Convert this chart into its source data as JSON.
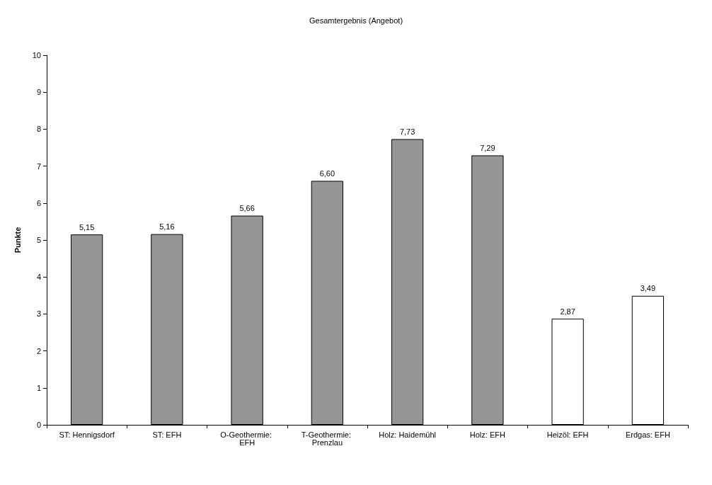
{
  "chart_data": {
    "type": "bar",
    "title": "Gesamtergebnis (Angebot)",
    "ylabel": "Punkte",
    "categories": [
      "ST: Hennigsdorf",
      "ST: EFH",
      "O-Geothermie: EFH",
      "T-Geothermie: Prenzlau",
      "Holz: Haidemühl",
      "Holz: EFH",
      "Heizöl: EFH",
      "Erdgas: EFH"
    ],
    "values": [
      5.15,
      5.16,
      5.66,
      6.6,
      7.73,
      7.29,
      2.87,
      3.49
    ],
    "colors": [
      "#969696",
      "#969696",
      "#969696",
      "#969696",
      "#969696",
      "#969696",
      "#ffffff",
      "#ffffff"
    ],
    "value_labels": [
      "5,15",
      "5,16",
      "5,66",
      "6,60",
      "7,73",
      "7,29",
      "2,87",
      "3,49"
    ],
    "ylim": [
      0,
      10
    ],
    "yticks": [
      0,
      1,
      2,
      3,
      4,
      5,
      6,
      7,
      8,
      9,
      10
    ],
    "grid": false
  }
}
